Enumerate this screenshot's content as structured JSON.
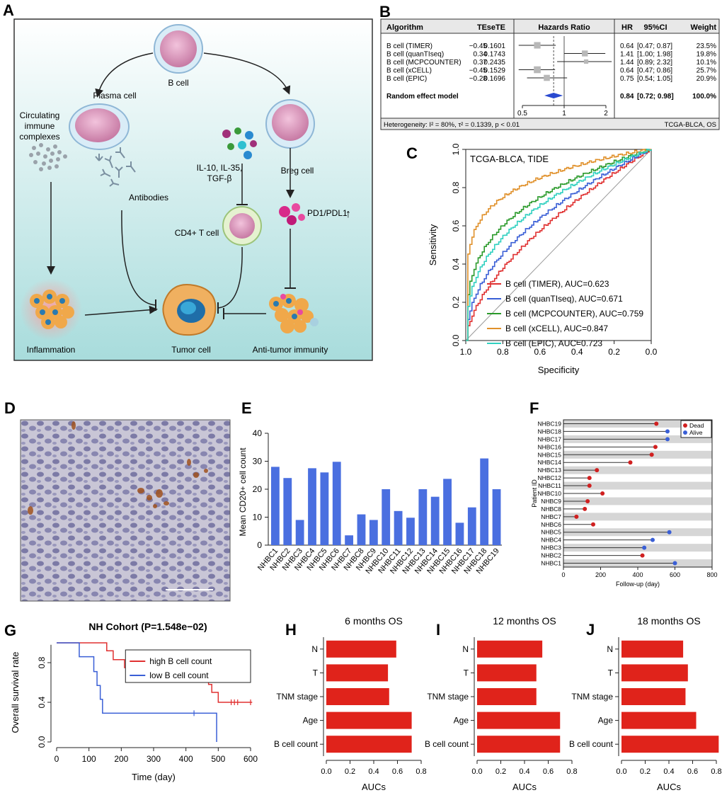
{
  "panel_letters": [
    "A",
    "B",
    "C",
    "D",
    "E",
    "F",
    "G",
    "H",
    "I",
    "J"
  ],
  "diagram_a": {
    "bcell": "B cell",
    "plasma": "Plasma cell",
    "breg": "Breg cell",
    "complexes": [
      "Circulating",
      "immune",
      "complexes"
    ],
    "cytokines": [
      "IL-10, IL-35,",
      "TGF-β"
    ],
    "antibodies": "Antibodies",
    "cd4": "CD4+ T cell",
    "pd1": "PD1/PDL1",
    "pd1_arrow": "↑",
    "inflammation": "Inflammation",
    "tumor": "Tumor cell",
    "antitumor": "Anti-tumor immunity",
    "colors": {
      "bg_top": "#ffffff",
      "bg_bottom": "#a8dcdc",
      "cell": "#d98fb5",
      "arrow": "#222222"
    }
  },
  "chart_data": [
    {
      "panel": "B",
      "type": "table",
      "subtype": "forest",
      "columns": [
        "Algorithm",
        "TE",
        "seTE",
        "Hazards Ratio",
        "HR",
        "95%CI",
        "Weight"
      ],
      "rows": [
        {
          "algorithm": "B cell (TIMER)",
          "te": "−0.45",
          "sete": "0.1601",
          "hr_text": "0.64",
          "ci_text": "[0.47; 0.87]",
          "weight": "23.5%",
          "hr": 0.64,
          "lo": 0.47,
          "hi": 0.87
        },
        {
          "algorithm": "B cell (quanTIseq)",
          "te": "0.34",
          "sete": "0.1743",
          "hr_text": "1.41",
          "ci_text": "[1.00; 1.98]",
          "weight": "19.8%",
          "hr": 1.41,
          "lo": 1.0,
          "hi": 1.98
        },
        {
          "algorithm": "B cell (MCPCOUNTER)",
          "te": "0.37",
          "sete": "0.2435",
          "hr_text": "1.44",
          "ci_text": "[0.89; 2.32]",
          "weight": "10.1%",
          "hr": 1.44,
          "lo": 0.89,
          "hi": 2.32
        },
        {
          "algorithm": "B cell (xCELL)",
          "te": "−0.45",
          "sete": "0.1529",
          "hr_text": "0.64",
          "ci_text": "[0.47; 0.86]",
          "weight": "25.7%",
          "hr": 0.64,
          "lo": 0.47,
          "hi": 0.86
        },
        {
          "algorithm": "B cell (EPIC)",
          "te": "−0.28",
          "sete": "0.1696",
          "hr_text": "0.75",
          "ci_text": "[0.54; 1.05]",
          "weight": "20.9%",
          "hr": 0.75,
          "lo": 0.54,
          "hi": 1.05
        }
      ],
      "summary": {
        "label": "Random effect model",
        "hr_text": "0.84",
        "ci_text": "[0.72; 0.98]",
        "weight": "100.0%",
        "hr": 0.84,
        "lo": 0.72,
        "hi": 0.98
      },
      "xticks": [
        "0.5",
        "1",
        "2"
      ],
      "footer_left": "Heterogeneity: I² = 80%, τ² = 0.1339, p < 0.01",
      "footer_right": "TCGA-BLCA, OS"
    },
    {
      "panel": "C",
      "type": "line",
      "title": "TCGA-BLCA, TIDE",
      "xlabel": "Specificity",
      "ylabel": "Sensitivity",
      "xlim": [
        1.0,
        0.0
      ],
      "ylim": [
        0.0,
        1.0
      ],
      "xticks": [
        "1.0",
        "0.8",
        "0.6",
        "0.4",
        "0.2",
        "0.0"
      ],
      "yticks": [
        "0.0",
        "0.2",
        "0.4",
        "0.6",
        "0.8",
        "1.0"
      ],
      "series": [
        {
          "name": "B cell (TIMER), AUC=0.623",
          "color": "#e03030",
          "auc": 0.623
        },
        {
          "name": "B cell (quanTIseq), AUC=0.671",
          "color": "#3a5fd6",
          "auc": 0.671
        },
        {
          "name": "B cell (MCPCOUNTER), AUC=0.759",
          "color": "#2a9a2a",
          "auc": 0.759
        },
        {
          "name": "B cell (xCELL), AUC=0.847",
          "color": "#e0902a",
          "auc": 0.847
        },
        {
          "name": "B cell (EPIC), AUC=0.723",
          "color": "#30d0c0",
          "auc": 0.723
        }
      ]
    },
    {
      "panel": "E",
      "type": "bar",
      "ylabel": "Mean CD20+ cell count",
      "ylim": [
        0,
        40
      ],
      "yticks": [
        "0",
        "10",
        "20",
        "30",
        "40"
      ],
      "color": "#4a6fe0",
      "categories": [
        "NHBC1",
        "NHBC2",
        "NHBC3",
        "NHBC4",
        "NHBC5",
        "NHBC6",
        "NHBC7",
        "NHBC8",
        "NHBC9",
        "NHBC10",
        "NHBC11",
        "NHBC12",
        "NHBC13",
        "NHBC14",
        "NHBC15",
        "NHBC16",
        "NHBC17",
        "NHBC18",
        "NHBC19"
      ],
      "values": [
        28,
        24,
        9,
        27.5,
        26,
        29.8,
        3.5,
        11,
        9,
        20,
        12.2,
        9.8,
        20,
        17.3,
        23.7,
        8,
        13.5,
        31,
        20
      ]
    },
    {
      "panel": "F",
      "type": "scatter",
      "subtype": "lollipop",
      "xlabel": "Follow-up (day)",
      "ylabel": "Patient ID",
      "xlim": [
        0,
        800
      ],
      "xticks": [
        "0",
        "200",
        "400",
        "600",
        "800"
      ],
      "legend": [
        {
          "label": "Dead",
          "color": "#d02020"
        },
        {
          "label": "Alive",
          "color": "#3a5fd6"
        }
      ],
      "patients": [
        "NHBC19",
        "NHBC18",
        "NHBC17",
        "NHBC16",
        "NHBC15",
        "NHBC14",
        "NHBC13",
        "NHBC12",
        "NHBC11",
        "NHBC10",
        "NHBC9",
        "NHBC8",
        "NHBC7",
        "NHBC6",
        "NHBC5",
        "NHBC4",
        "NHBC3",
        "NHBC2",
        "NHBC1"
      ],
      "days": [
        500,
        560,
        560,
        495,
        475,
        360,
        180,
        140,
        140,
        210,
        130,
        115,
        70,
        160,
        570,
        480,
        435,
        425,
        600
      ],
      "status": [
        "Dead",
        "Alive",
        "Alive",
        "Dead",
        "Dead",
        "Dead",
        "Dead",
        "Dead",
        "Dead",
        "Dead",
        "Dead",
        "Dead",
        "Dead",
        "Dead",
        "Alive",
        "Alive",
        "Alive",
        "Dead",
        "Alive"
      ]
    },
    {
      "panel": "G",
      "type": "line",
      "subtype": "kaplan-meier",
      "title": "NH Cohort (P=1.548e−02)",
      "xlabel": "Time (day)",
      "ylabel": "Overall survival rate",
      "xlim": [
        0,
        600
      ],
      "ylim": [
        0,
        1
      ],
      "xticks": [
        "0",
        "100",
        "200",
        "300",
        "400",
        "500",
        "600"
      ],
      "yticks": [
        "0.0",
        "0.4",
        "0.8"
      ],
      "series": [
        {
          "name": "high B cell count",
          "color": "#e03030",
          "steps": [
            [
              0,
              1.0
            ],
            [
              155,
              1.0
            ],
            [
              155,
              0.92
            ],
            [
              175,
              0.92
            ],
            [
              175,
              0.83
            ],
            [
              210,
              0.83
            ],
            [
              210,
              0.75
            ],
            [
              355,
              0.75
            ],
            [
              355,
              0.67
            ],
            [
              470,
              0.67
            ],
            [
              470,
              0.58
            ],
            [
              480,
              0.58
            ],
            [
              480,
              0.5
            ],
            [
              500,
              0.5
            ],
            [
              500,
              0.4
            ],
            [
              605,
              0.4
            ]
          ],
          "censor": [
            [
              540,
              0.4
            ],
            [
              550,
              0.4
            ],
            [
              560,
              0.4
            ],
            [
              600,
              0.4
            ]
          ]
        },
        {
          "name": "low B cell count",
          "color": "#3a5fd6",
          "steps": [
            [
              0,
              1.0
            ],
            [
              70,
              1.0
            ],
            [
              70,
              0.86
            ],
            [
              115,
              0.86
            ],
            [
              115,
              0.71
            ],
            [
              125,
              0.71
            ],
            [
              125,
              0.57
            ],
            [
              135,
              0.57
            ],
            [
              135,
              0.43
            ],
            [
              142,
              0.43
            ],
            [
              142,
              0.29
            ],
            [
              495,
              0.29
            ],
            [
              495,
              0.0
            ]
          ],
          "censor": [
            [
              425,
              0.29
            ]
          ]
        }
      ]
    },
    {
      "panel": "H",
      "type": "bar",
      "orientation": "horizontal",
      "title": "6 months OS",
      "xlabel": "AUCs",
      "xlim": [
        0,
        0.8
      ],
      "xticks": [
        "0.0",
        "0.2",
        "0.4",
        "0.6",
        "0.8"
      ],
      "color": "#e0231b",
      "categories": [
        "N",
        "T",
        "TNM stage",
        "Age",
        "B cell count"
      ],
      "values": [
        0.59,
        0.52,
        0.53,
        0.72,
        0.72
      ]
    },
    {
      "panel": "I",
      "type": "bar",
      "orientation": "horizontal",
      "title": "12 months OS",
      "xlabel": "AUCs",
      "xlim": [
        0,
        0.8
      ],
      "xticks": [
        "0.0",
        "0.2",
        "0.4",
        "0.6",
        "0.8"
      ],
      "color": "#e0231b",
      "categories": [
        "N",
        "T",
        "TNM stage",
        "Age",
        "B cell count"
      ],
      "values": [
        0.55,
        0.5,
        0.5,
        0.7,
        0.7
      ]
    },
    {
      "panel": "J",
      "type": "bar",
      "orientation": "horizontal",
      "title": "18 months OS",
      "xlabel": "AUCs",
      "xlim": [
        0,
        0.8
      ],
      "xticks": [
        "0.0",
        "0.2",
        "0.4",
        "0.6",
        "0.8"
      ],
      "color": "#e0231b",
      "categories": [
        "N",
        "T",
        "TNM stage",
        "Age",
        "B cell count"
      ],
      "values": [
        0.52,
        0.56,
        0.54,
        0.63,
        0.82
      ]
    }
  ]
}
